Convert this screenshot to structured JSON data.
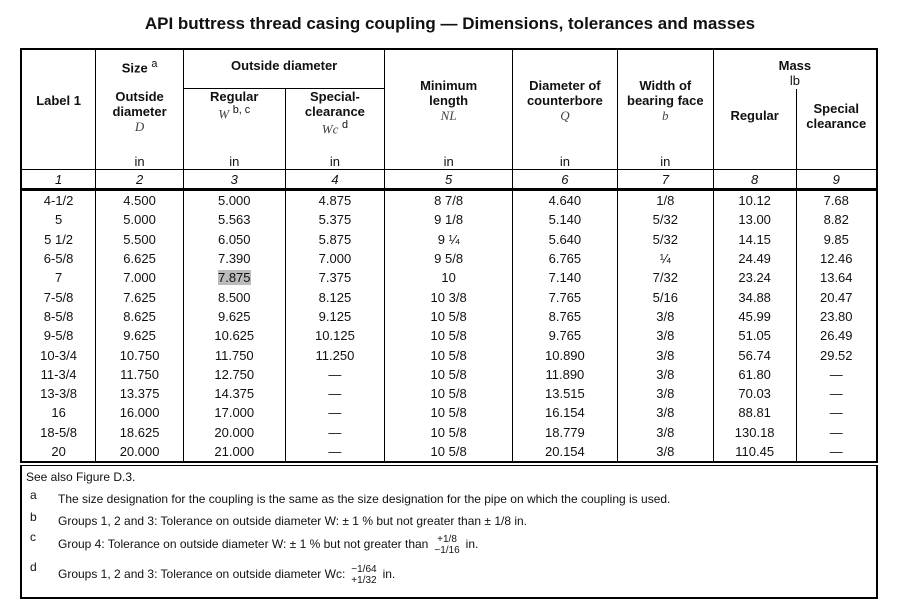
{
  "title": "API buttress thread casing coupling — Dimensions, tolerances and masses",
  "headers": {
    "label": "Label 1",
    "size": "Size",
    "size_sup": "a",
    "od_group": "Outside diameter",
    "size_od": "Outside diameter",
    "size_sym": "D",
    "regular": "Regular",
    "regular_sym": "W",
    "regular_sup": "b, c",
    "special": "Special-clearance",
    "special_sym": "Wc",
    "special_sup": "d",
    "min_length": "Minimum length",
    "min_length_sym": "NL",
    "counterbore": "Diameter of counterbore",
    "counterbore_sym": "Q",
    "bearing": "Width of bearing face",
    "bearing_sym": "b",
    "mass": "Mass",
    "mass_unit": "lb",
    "mass_regular": "Regular",
    "mass_special": "Special clearance",
    "unit": "in"
  },
  "col_numbers": [
    "1",
    "2",
    "3",
    "4",
    "5",
    "6",
    "7",
    "8",
    "9"
  ],
  "rows": [
    [
      "4-1/2",
      "4.500",
      "5.000",
      "4.875",
      "8 7/8",
      "4.640",
      "1/8",
      "10.12",
      "7.68"
    ],
    [
      "5",
      "5.000",
      "5.563",
      "5.375",
      "9 1/8",
      "5.140",
      "5/32",
      "13.00",
      "8.82"
    ],
    [
      "5 1/2",
      "5.500",
      "6.050",
      "5.875",
      "9 ¼",
      "5.640",
      "5/32",
      "14.15",
      "9.85"
    ],
    [
      "6-5/8",
      "6.625",
      "7.390",
      "7.000",
      "9 5/8",
      "6.765",
      "¼",
      "24.49",
      "12.46"
    ],
    [
      "7",
      "7.000",
      "7.875",
      "7.375",
      "10",
      "7.140",
      "7/32",
      "23.24",
      "13.64"
    ],
    [
      "7-5/8",
      "7.625",
      "8.500",
      "8.125",
      "10 3/8",
      "7.765",
      "5/16",
      "34.88",
      "20.47"
    ],
    [
      "8-5/8",
      "8.625",
      "9.625",
      "9.125",
      "10 5/8",
      "8.765",
      "3/8",
      "45.99",
      "23.80"
    ],
    [
      "9-5/8",
      "9.625",
      "10.625",
      "10.125",
      "10 5/8",
      "9.765",
      "3/8",
      "51.05",
      "26.49"
    ],
    [
      "10-3/4",
      "10.750",
      "11.750",
      "11.250",
      "10 5/8",
      "10.890",
      "3/8",
      "56.74",
      "29.52"
    ],
    [
      "11-3/4",
      "11.750",
      "12.750",
      "—",
      "10 5/8",
      "11.890",
      "3/8",
      "61.80",
      "—"
    ],
    [
      "13-3/8",
      "13.375",
      "14.375",
      "—",
      "10 5/8",
      "13.515",
      "3/8",
      "70.03",
      "—"
    ],
    [
      "16",
      "16.000",
      "17.000",
      "—",
      "10 5/8",
      "16.154",
      "3/8",
      "88.81",
      "—"
    ],
    [
      "18-5/8",
      "18.625",
      "20.000",
      "—",
      "10 5/8",
      "18.779",
      "3/8",
      "130.18",
      "—"
    ],
    [
      "20",
      "20.000",
      "21.000",
      "—",
      "10 5/8",
      "20.154",
      "3/8",
      "110.45",
      "—"
    ]
  ],
  "notes": {
    "see_also": "See also Figure D.3.",
    "a_mark": "a",
    "a": "The size designation for the coupling is the same as the size designation for the pipe on which the coupling is used.",
    "b_mark": "b",
    "b": "Groups 1, 2 and 3: Tolerance on outside diameter W: ± 1 % but not greater than ± 1/8 in.",
    "c_mark": "c",
    "c": "Group 4: Tolerance on outside diameter W: ± 1 % but not greater than",
    "c_up": "+1/8",
    "c_down": "−1/16",
    "c_unit": "in.",
    "d_mark": "d",
    "d": "Groups 1, 2 and 3: Tolerance on outside diameter Wc:",
    "d_up": "−1/64",
    "d_down": "+1/32",
    "d_unit": "in."
  }
}
